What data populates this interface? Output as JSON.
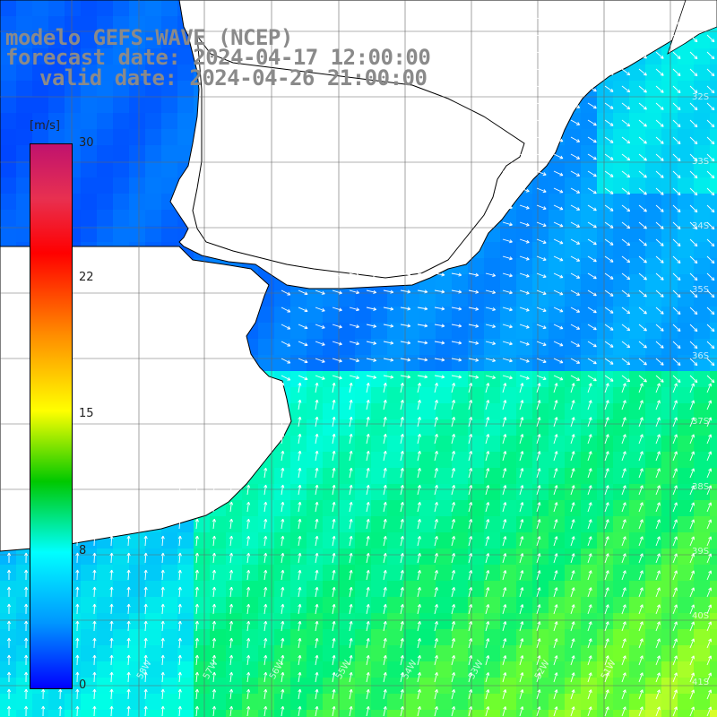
{
  "title": {
    "line1": "modelo GEFS-WAVE (NCEP)",
    "line2": "forecast date: 2024-04-17 12:00:00",
    "line3": "valid date: 2024-04-26 21:00:00"
  },
  "colorbar": {
    "units": "[m/s]",
    "ticks": [
      "30",
      "22",
      "15",
      "8",
      "0"
    ],
    "tick_values": [
      30,
      22,
      15,
      8,
      0
    ],
    "colors": [
      "#c0126e",
      "#ff0000",
      "#ff8c00",
      "#ffff00",
      "#00c800",
      "#00ffff",
      "#0096ff",
      "#0000ff"
    ]
  },
  "lat_labels": [
    "32S",
    "33S",
    "34S",
    "35S",
    "36S",
    "37S",
    "38S",
    "39S",
    "40S",
    "41S"
  ],
  "lon_labels": [
    "58W",
    "57W",
    "56W",
    "55W",
    "54W",
    "53W",
    "52W",
    "51W"
  ]
}
